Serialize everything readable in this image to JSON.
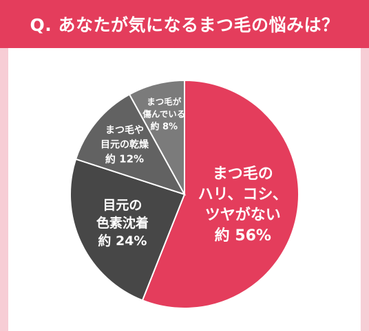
{
  "header": {
    "title": "Q. あなたが気になるまつ毛の悩みは？"
  },
  "colors": {
    "header": "#e43d5c",
    "background": "#f7cdd5",
    "panel": "#ffffff",
    "slice_1": "#e43d5c",
    "slice_2": "#474747",
    "slice_3": "#626262",
    "slice_4": "#7b7b7b"
  },
  "chart_data": {
    "type": "pie",
    "title": "Q. あなたが気になるまつ毛の悩みは？",
    "start": "12 o'clock, clockwise",
    "slices": [
      {
        "label_lines": [
          "まつ毛の",
          "ハリ、コシ、",
          "ツヤがない"
        ],
        "value_label": "約 56%",
        "value": 56
      },
      {
        "label_lines": [
          "目元の",
          "色素沈着"
        ],
        "value_label": "約 24%",
        "value": 24
      },
      {
        "label_lines": [
          "まつ毛や",
          "目元の乾燥"
        ],
        "value_label": "約 12%",
        "value": 12
      },
      {
        "label_lines": [
          "まつ毛が",
          "傷んでいる"
        ],
        "value_label": "約 8%",
        "value": 8
      }
    ]
  }
}
